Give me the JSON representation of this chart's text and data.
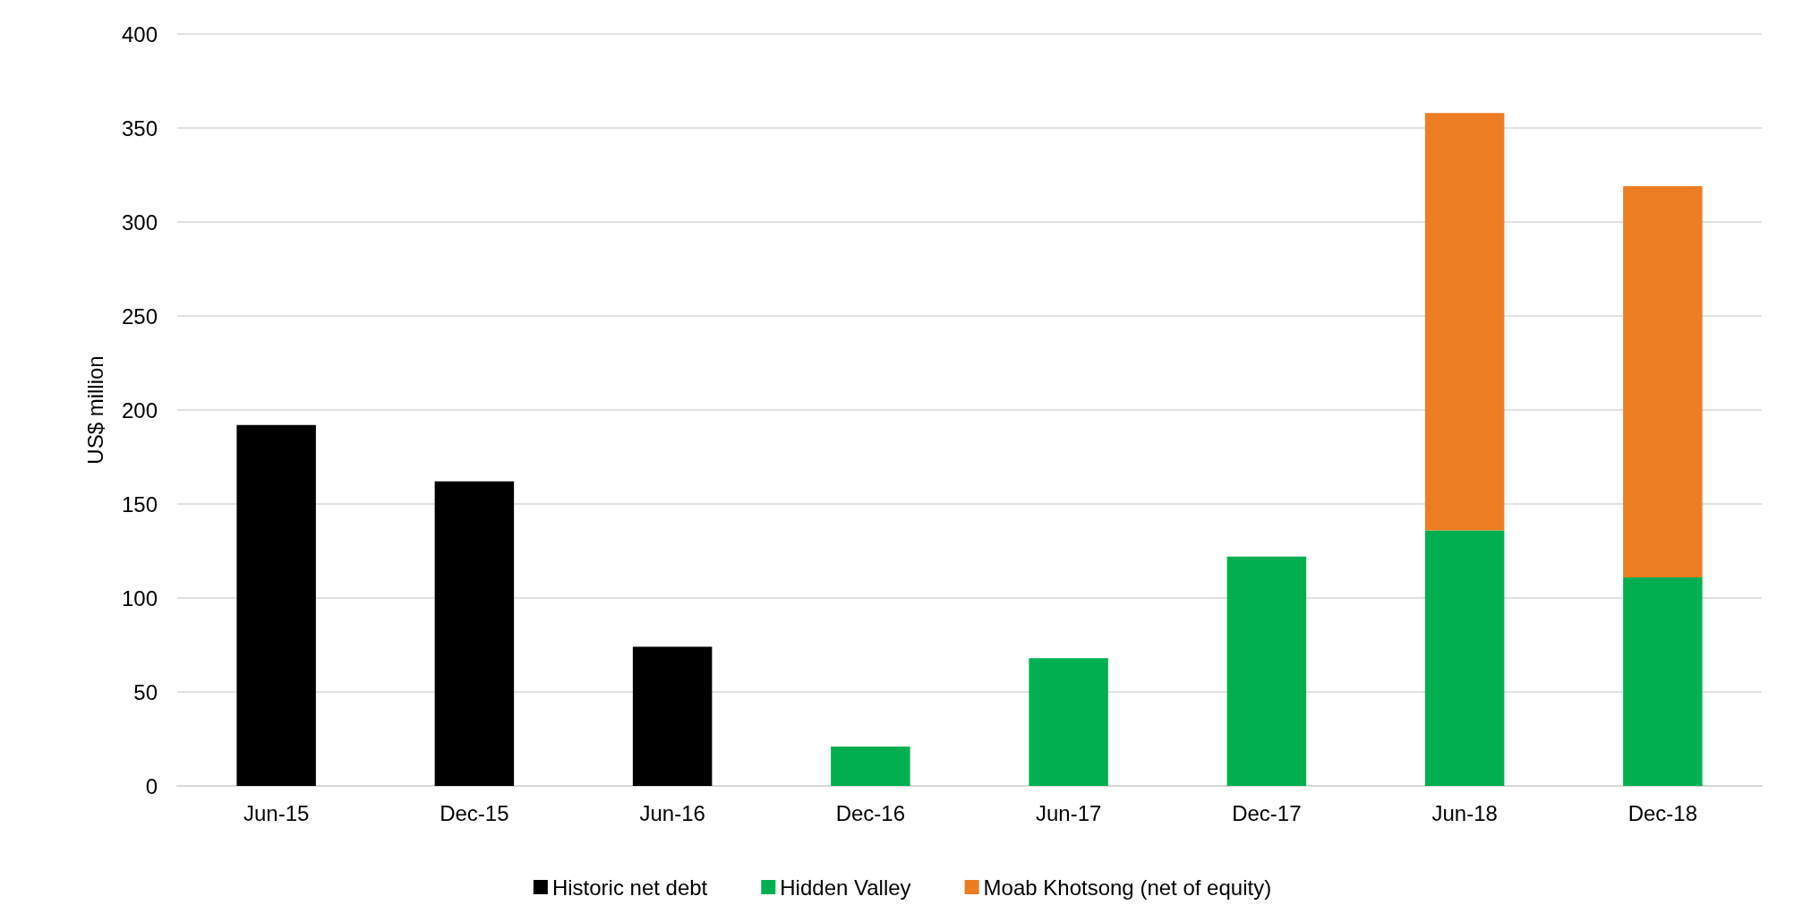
{
  "chart_data": {
    "type": "bar",
    "ylabel": "US$ million",
    "categories": [
      "Jun-15",
      "Dec-15",
      "Jun-16",
      "Dec-16",
      "Jun-17",
      "Dec-17",
      "Jun-18",
      "Dec-18"
    ],
    "series": [
      {
        "name": "Historic net debt",
        "color": "#000000",
        "values": [
          192,
          162,
          74,
          null,
          null,
          null,
          null,
          null
        ]
      },
      {
        "name": "Hidden Valley",
        "color": "#00b050",
        "values": [
          null,
          null,
          null,
          21,
          68,
          122,
          136,
          111
        ]
      },
      {
        "name": "Moab Khotsong (net of equity)",
        "color": "#ed7d22",
        "values": [
          null,
          null,
          null,
          null,
          null,
          null,
          222,
          208
        ]
      }
    ],
    "stacked": true,
    "ylim": [
      0,
      400
    ],
    "yticks": [
      0,
      50,
      100,
      150,
      200,
      250,
      300,
      350,
      400
    ],
    "grid": "y",
    "legend": "bottom"
  }
}
